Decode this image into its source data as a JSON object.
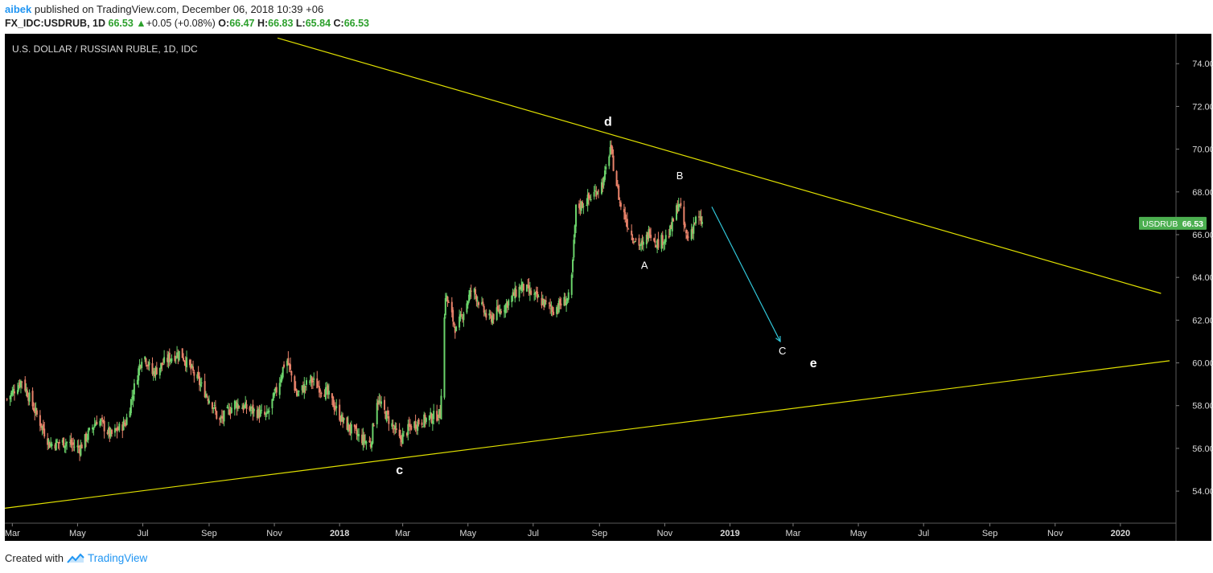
{
  "header": {
    "user": "aibek",
    "published": "published on TradingView.com, December 06, 2018 10:39 +06",
    "symbol": "FX_IDC:USDRUB, 1D",
    "last": "66.53",
    "change": "+0.05 (+0.08%)",
    "open_label": "O:",
    "open": "66.47",
    "high_label": "H:",
    "high": "66.83",
    "low_label": "L:",
    "low": "65.84",
    "close_label": "C:",
    "close": "66.53"
  },
  "footer": {
    "created_with": "Created with",
    "brand": "TradingView"
  },
  "colors": {
    "background": "#000000",
    "up": "#6bd36b",
    "down": "#e8826a",
    "trendline": "#e0e000",
    "projection": "#31c6d8",
    "price_tag": "#4caf50",
    "axis_text": "#d9d9d9",
    "brand": "#2196f3"
  },
  "chart_data": {
    "type": "candlestick",
    "title": "U.S. DOLLAR / RUSSIAN RUBLE, 1D, IDC",
    "y_ticks": [
      "54.00",
      "56.00",
      "58.00",
      "60.00",
      "62.00",
      "64.00",
      "66.00",
      "68.00",
      "70.00",
      "72.00",
      "74.00"
    ],
    "ylim": [
      52.5,
      75.4
    ],
    "x_range": [
      "2017-02-22",
      "2020-02-22"
    ],
    "x_ticks": [
      {
        "date": "2017-03-01",
        "label": "Mar",
        "bold": false
      },
      {
        "date": "2017-05-01",
        "label": "May",
        "bold": false
      },
      {
        "date": "2017-07-01",
        "label": "Jul",
        "bold": false
      },
      {
        "date": "2017-09-01",
        "label": "Sep",
        "bold": false
      },
      {
        "date": "2017-11-01",
        "label": "Nov",
        "bold": false
      },
      {
        "date": "2018-01-01",
        "label": "2018",
        "bold": true
      },
      {
        "date": "2018-03-01",
        "label": "Mar",
        "bold": false
      },
      {
        "date": "2018-05-01",
        "label": "May",
        "bold": false
      },
      {
        "date": "2018-07-01",
        "label": "Jul",
        "bold": false
      },
      {
        "date": "2018-09-01",
        "label": "Sep",
        "bold": false
      },
      {
        "date": "2018-11-01",
        "label": "Nov",
        "bold": false
      },
      {
        "date": "2019-01-01",
        "label": "2019",
        "bold": true
      },
      {
        "date": "2019-03-01",
        "label": "Mar",
        "bold": false
      },
      {
        "date": "2019-05-01",
        "label": "May",
        "bold": false
      },
      {
        "date": "2019-07-01",
        "label": "Jul",
        "bold": false
      },
      {
        "date": "2019-09-01",
        "label": "Sep",
        "bold": false
      },
      {
        "date": "2019-11-01",
        "label": "Nov",
        "bold": false
      },
      {
        "date": "2020-01-01",
        "label": "2020",
        "bold": true
      }
    ],
    "price_path": [
      [
        "2017-02-24",
        58.3
      ],
      [
        "2017-03-10",
        59.2
      ],
      [
        "2017-03-20",
        58.0
      ],
      [
        "2017-04-05",
        56.2
      ],
      [
        "2017-04-20",
        56.3
      ],
      [
        "2017-05-03",
        56.0
      ],
      [
        "2017-05-20",
        57.4
      ],
      [
        "2017-06-01",
        56.6
      ],
      [
        "2017-06-15",
        57.2
      ],
      [
        "2017-07-01",
        60.5
      ],
      [
        "2017-07-10",
        59.5
      ],
      [
        "2017-07-25",
        60.2
      ],
      [
        "2017-08-05",
        60.5
      ],
      [
        "2017-08-20",
        59.3
      ],
      [
        "2017-09-05",
        58.0
      ],
      [
        "2017-09-10",
        57.2
      ],
      [
        "2017-09-25",
        58.1
      ],
      [
        "2017-10-10",
        57.8
      ],
      [
        "2017-10-25",
        57.5
      ],
      [
        "2017-11-05",
        59.0
      ],
      [
        "2017-11-12",
        60.3
      ],
      [
        "2017-11-22",
        58.5
      ],
      [
        "2017-12-05",
        59.2
      ],
      [
        "2017-12-20",
        58.6
      ],
      [
        "2018-01-05",
        57.2
      ],
      [
        "2018-01-20",
        56.5
      ],
      [
        "2018-01-30",
        56.2
      ],
      [
        "2018-02-05",
        58.3
      ],
      [
        "2018-02-20",
        57.0
      ],
      [
        "2018-02-26",
        56.4
      ],
      [
        "2018-03-10",
        57.1
      ],
      [
        "2018-03-25",
        57.4
      ],
      [
        "2018-04-05",
        57.6
      ],
      [
        "2018-04-10",
        63.2
      ],
      [
        "2018-04-20",
        61.5
      ],
      [
        "2018-05-05",
        63.5
      ],
      [
        "2018-05-20",
        62.0
      ],
      [
        "2018-06-05",
        62.7
      ],
      [
        "2018-06-20",
        63.6
      ],
      [
        "2018-07-05",
        63.0
      ],
      [
        "2018-07-20",
        62.5
      ],
      [
        "2018-08-05",
        63.1
      ],
      [
        "2018-08-10",
        67.2
      ],
      [
        "2018-08-25",
        67.8
      ],
      [
        "2018-09-05",
        68.5
      ],
      [
        "2018-09-11",
        70.1
      ],
      [
        "2018-09-20",
        67.5
      ],
      [
        "2018-10-01",
        66.0
      ],
      [
        "2018-10-11",
        65.4
      ],
      [
        "2018-10-18",
        66.2
      ],
      [
        "2018-10-25",
        65.6
      ],
      [
        "2018-11-05",
        66.0
      ],
      [
        "2018-11-14",
        67.5
      ],
      [
        "2018-11-22",
        65.8
      ],
      [
        "2018-12-01",
        66.8
      ],
      [
        "2018-12-06",
        66.53
      ]
    ],
    "trendlines": [
      {
        "name": "upper",
        "from": [
          "2017-11-04",
          75.2
        ],
        "to": [
          "2020-02-08",
          63.25
        ],
        "color": "#e0e000"
      },
      {
        "name": "lower",
        "from": [
          "2017-02-22",
          53.2
        ],
        "to": [
          "2020-02-16",
          60.1
        ],
        "color": "#e0e000"
      }
    ],
    "projection_arrow": {
      "from": [
        "2018-12-15",
        67.3
      ],
      "to": [
        "2019-02-17",
        61.0
      ],
      "color": "#31c6d8"
    },
    "wave_labels": [
      {
        "text": "d",
        "x": "2018-09-09",
        "y": 71.1,
        "bold": true,
        "size": 16
      },
      {
        "text": "c",
        "x": "2018-02-26",
        "y": 54.8,
        "bold": true,
        "size": 16
      },
      {
        "text": "A",
        "x": "2018-10-13",
        "y": 64.4,
        "bold": false,
        "size": 13
      },
      {
        "text": "B",
        "x": "2018-11-15",
        "y": 68.6,
        "bold": false,
        "size": 13
      },
      {
        "text": "C",
        "x": "2019-02-19",
        "y": 60.4,
        "bold": false,
        "size": 13
      },
      {
        "text": "e",
        "x": "2019-03-20",
        "y": 59.8,
        "bold": true,
        "size": 16
      }
    ],
    "last_price_tag": {
      "symbol": "USDRUB",
      "value": "66.53",
      "y": 66.53
    },
    "grid": false,
    "legend": "none"
  }
}
